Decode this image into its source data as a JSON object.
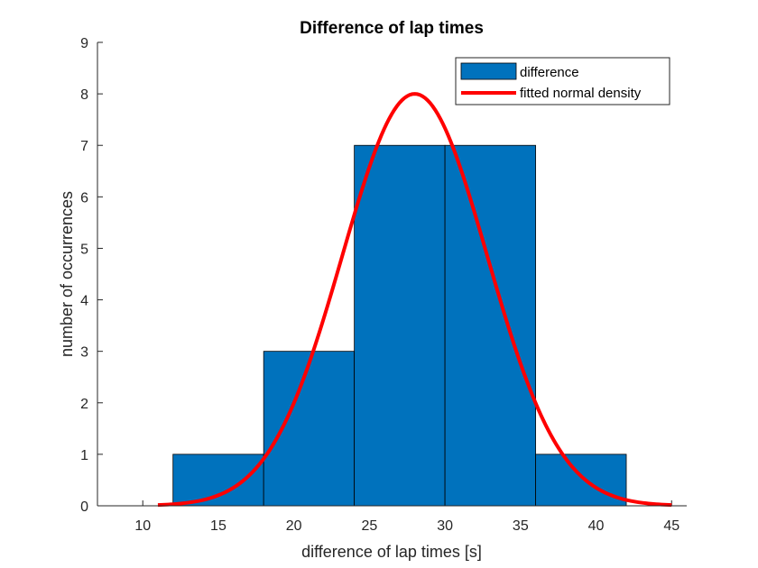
{
  "chart_data": {
    "type": "bar",
    "title": "Difference of lap times",
    "xlabel": "difference of lap times [s]",
    "ylabel": "number of occurrences",
    "xlim": [
      7,
      46
    ],
    "ylim": [
      0,
      9
    ],
    "xticks": [
      10,
      15,
      20,
      25,
      30,
      35,
      40,
      45
    ],
    "yticks": [
      0,
      1,
      2,
      3,
      4,
      5,
      6,
      7,
      8,
      9
    ],
    "bins": [
      {
        "x0": 12,
        "x1": 18,
        "count": 1
      },
      {
        "x0": 18,
        "x1": 24,
        "count": 3
      },
      {
        "x0": 24,
        "x1": 30,
        "count": 7
      },
      {
        "x0": 30,
        "x1": 36,
        "count": 7
      },
      {
        "x0": 36,
        "x1": 42,
        "count": 1
      }
    ],
    "series": [
      {
        "name": "difference",
        "kind": "histogram",
        "color": "#0072BD"
      },
      {
        "name": "fitted normal density",
        "kind": "line",
        "color": "#FF0000",
        "mean": 28,
        "sd": 4.8,
        "peak": 8,
        "x_range": [
          11,
          45
        ]
      }
    ],
    "legend_position": "top-right",
    "grid": false
  }
}
